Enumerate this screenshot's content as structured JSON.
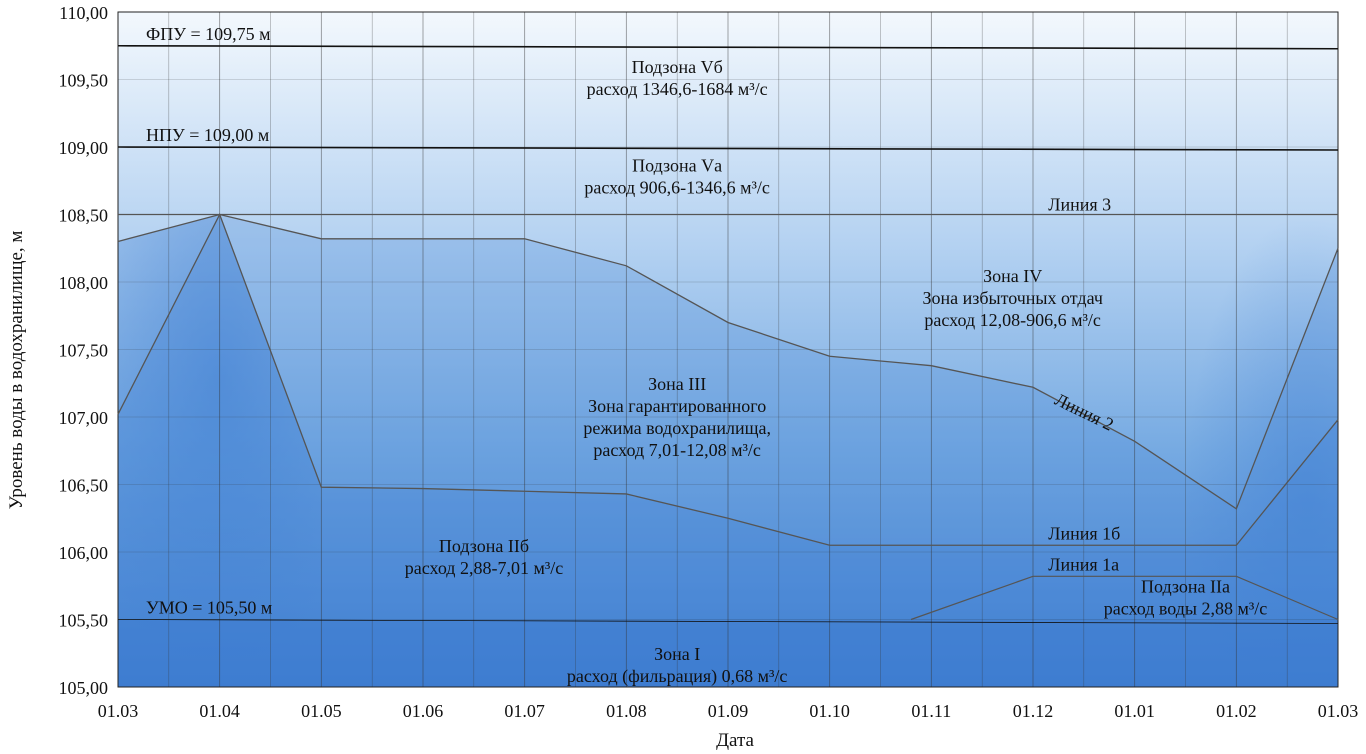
{
  "chart_data": {
    "type": "area",
    "xlabel": "Дата",
    "ylabel": "Уровень воды в водохранилище, м",
    "x_ticks": [
      "01.03",
      "01.04",
      "01.05",
      "01.06",
      "01.07",
      "01.08",
      "01.09",
      "01.10",
      "01.11",
      "01.12",
      "01.01",
      "01.02",
      "01.03"
    ],
    "y_ticks": [
      "105,00",
      "105,50",
      "106,00",
      "106,50",
      "107,00",
      "107,50",
      "108,00",
      "108,50",
      "109,00",
      "109,50",
      "110,00"
    ],
    "ylim": [
      105.0,
      110.0
    ],
    "grid": true,
    "levels": {
      "fpu": {
        "label": "ФПУ = 109,75 м",
        "value": 109.75
      },
      "npu": {
        "label": "НПУ = 109,00 м",
        "value": 109.0
      },
      "umo": {
        "label": "УМО = 105,50 м",
        "value": 105.5
      }
    },
    "lines": {
      "line3": {
        "label": "Линия 3",
        "values": [
          108.5,
          108.5,
          108.5,
          108.5,
          108.5,
          108.5,
          108.5,
          108.5,
          108.5,
          108.5,
          108.5,
          108.5,
          108.5
        ]
      },
      "line2": {
        "label": "Линия 2",
        "values": [
          108.3,
          108.5,
          108.32,
          108.32,
          108.32,
          108.12,
          107.7,
          107.45,
          107.38,
          107.22,
          106.82,
          106.32,
          108.25
        ]
      },
      "line1b": {
        "label": "Линия 1б",
        "values": [
          107.02,
          108.5,
          106.48,
          106.47,
          106.45,
          106.43,
          106.25,
          106.05,
          106.05,
          106.05,
          106.05,
          106.05,
          106.98
        ]
      },
      "line1a": {
        "label": "Линия 1а",
        "values": [
          105.5,
          105.5,
          105.5,
          105.5,
          105.5,
          105.5,
          105.5,
          105.5,
          105.5,
          105.82,
          105.82,
          105.82,
          105.5
        ]
      }
    },
    "zones": [
      {
        "title": "Подзона Vб",
        "lines": [
          "Подзона Vб",
          "расход 1346,6-1684 м³/с"
        ]
      },
      {
        "title": "Подзона Vа",
        "lines": [
          "Подзона Vа",
          "расход 906,6-1346,6 м³/с"
        ]
      },
      {
        "title": "Зона IV",
        "lines": [
          "Зона IV",
          "Зона избыточных отдач",
          "расход 12,08-906,6 м³/с"
        ]
      },
      {
        "title": "Зона III",
        "lines": [
          "Зона III",
          "Зона гарантированного",
          "режима водохранилища,",
          "расход 7,01-12,08 м³/с"
        ]
      },
      {
        "title": "Подзона IIб",
        "lines": [
          "Подзона IIб",
          "расход 2,88-7,01 м³/с"
        ]
      },
      {
        "title": "Подзона IIа",
        "lines": [
          "Подзона IIа",
          "расход воды 2,88 м³/с"
        ]
      },
      {
        "title": "Зона I",
        "lines": [
          "Зона I",
          "расход (фильрация) 0,68 м³/с"
        ]
      }
    ],
    "colors": {
      "top": "#e9f2fb",
      "mid": "#6aa3df",
      "bottom": "#3f7fd3",
      "line": "#555555",
      "level_line": "#111111"
    }
  }
}
